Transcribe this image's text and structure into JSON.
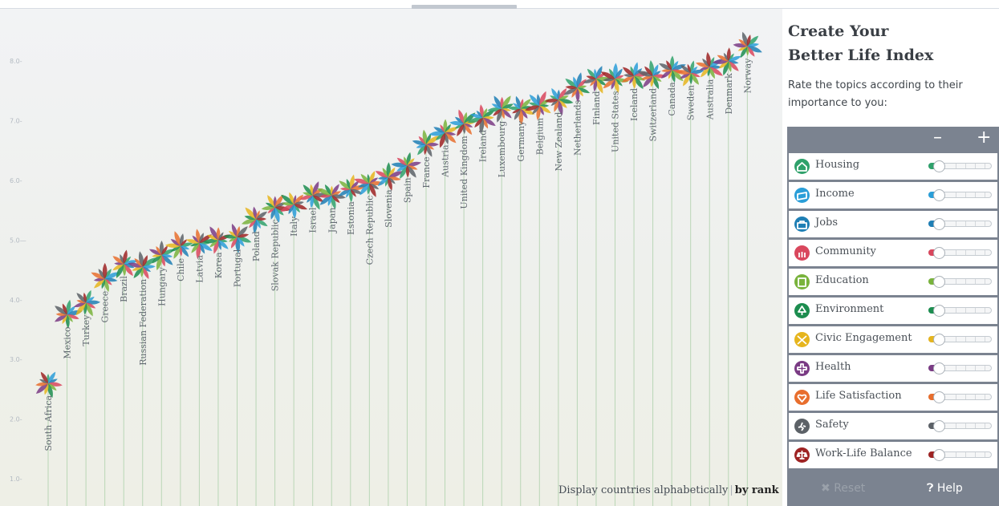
{
  "header": {
    "title_line1": "Create Your",
    "title_line2": "Better Life Index",
    "subtitle": "Rate the topics according to their importance to you:"
  },
  "panel": {
    "minus_label": "–",
    "plus_label": "+",
    "topics": [
      {
        "label": "Housing",
        "color": "#2fa16b",
        "icon": "house-icon",
        "weight": 0.0
      },
      {
        "label": "Income",
        "color": "#2a9ed8",
        "icon": "income-icon",
        "weight": 0.0
      },
      {
        "label": "Jobs",
        "color": "#1f7fb5",
        "icon": "briefcase-icon",
        "weight": 0.0
      },
      {
        "label": "Community",
        "color": "#d9475d",
        "icon": "people-icon",
        "weight": 0.0
      },
      {
        "label": "Education",
        "color": "#79b33c",
        "icon": "book-icon",
        "weight": 0.0
      },
      {
        "label": "Environment",
        "color": "#1c8d4f",
        "icon": "tree-icon",
        "weight": 0.0
      },
      {
        "label": "Civic Engagement",
        "color": "#e6b51d",
        "icon": "ballot-icon",
        "weight": 0.0
      },
      {
        "label": "Health",
        "color": "#7a3b84",
        "icon": "health-cross-icon",
        "weight": 0.0
      },
      {
        "label": "Life Satisfaction",
        "color": "#e86e2d",
        "icon": "heart-icon",
        "weight": 0.0
      },
      {
        "label": "Safety",
        "color": "#5c6167",
        "icon": "runner-icon",
        "weight": 0.0
      },
      {
        "label": "Work-Life Balance",
        "color": "#9e2323",
        "icon": "scale-icon",
        "weight": 0.0
      }
    ],
    "reset_label": "Reset",
    "help_label": "Help"
  },
  "sort": {
    "alphabetical_label": "Display countries alphabetically",
    "separator": "|",
    "rank_label": "by rank",
    "active": "rank"
  },
  "chart_data": {
    "type": "scatter",
    "y_ticks": [
      "1.0-",
      "2.0-",
      "3.0-",
      "4.0-",
      "5.0—",
      "6.0-",
      "7.0-",
      "8.0-"
    ],
    "ylim": [
      0.6,
      8.9
    ],
    "countries": [
      "South Africa",
      "Mexico",
      "Turkey",
      "Greece",
      "Brazil",
      "Russian Federation",
      "Hungary",
      "Chile",
      "Latvia",
      "Korea",
      "Portugal",
      "Poland",
      "Slovak Republic",
      "Italy",
      "Israel",
      "Japan",
      "Estonia",
      "Czech Republic",
      "Slovenia",
      "Spain",
      "France",
      "Austria",
      "United Kingdom",
      "Ireland",
      "Luxembourg",
      "Germany",
      "Belgium",
      "New Zealand",
      "Netherlands",
      "Finland",
      "United States",
      "Iceland",
      "Switzerland",
      "Canada",
      "Sweden",
      "Australia",
      "Denmark",
      "Norway"
    ],
    "values": [
      2.6,
      3.75,
      3.95,
      4.35,
      4.6,
      4.55,
      4.75,
      4.9,
      4.95,
      5.0,
      5.05,
      5.35,
      5.55,
      5.6,
      5.75,
      5.75,
      5.85,
      5.95,
      6.05,
      6.25,
      6.6,
      6.8,
      6.95,
      7.05,
      7.2,
      7.2,
      7.25,
      7.35,
      7.55,
      7.7,
      7.7,
      7.75,
      7.75,
      7.85,
      7.8,
      7.9,
      8.0,
      8.25
    ],
    "petal_colors": [
      "#2fa16b",
      "#2a9ed8",
      "#1f7fb5",
      "#d9475d",
      "#79b33c",
      "#1c8d4f",
      "#e6b51d",
      "#7a3b84",
      "#e86e2d",
      "#5c6167",
      "#9e2323"
    ]
  }
}
